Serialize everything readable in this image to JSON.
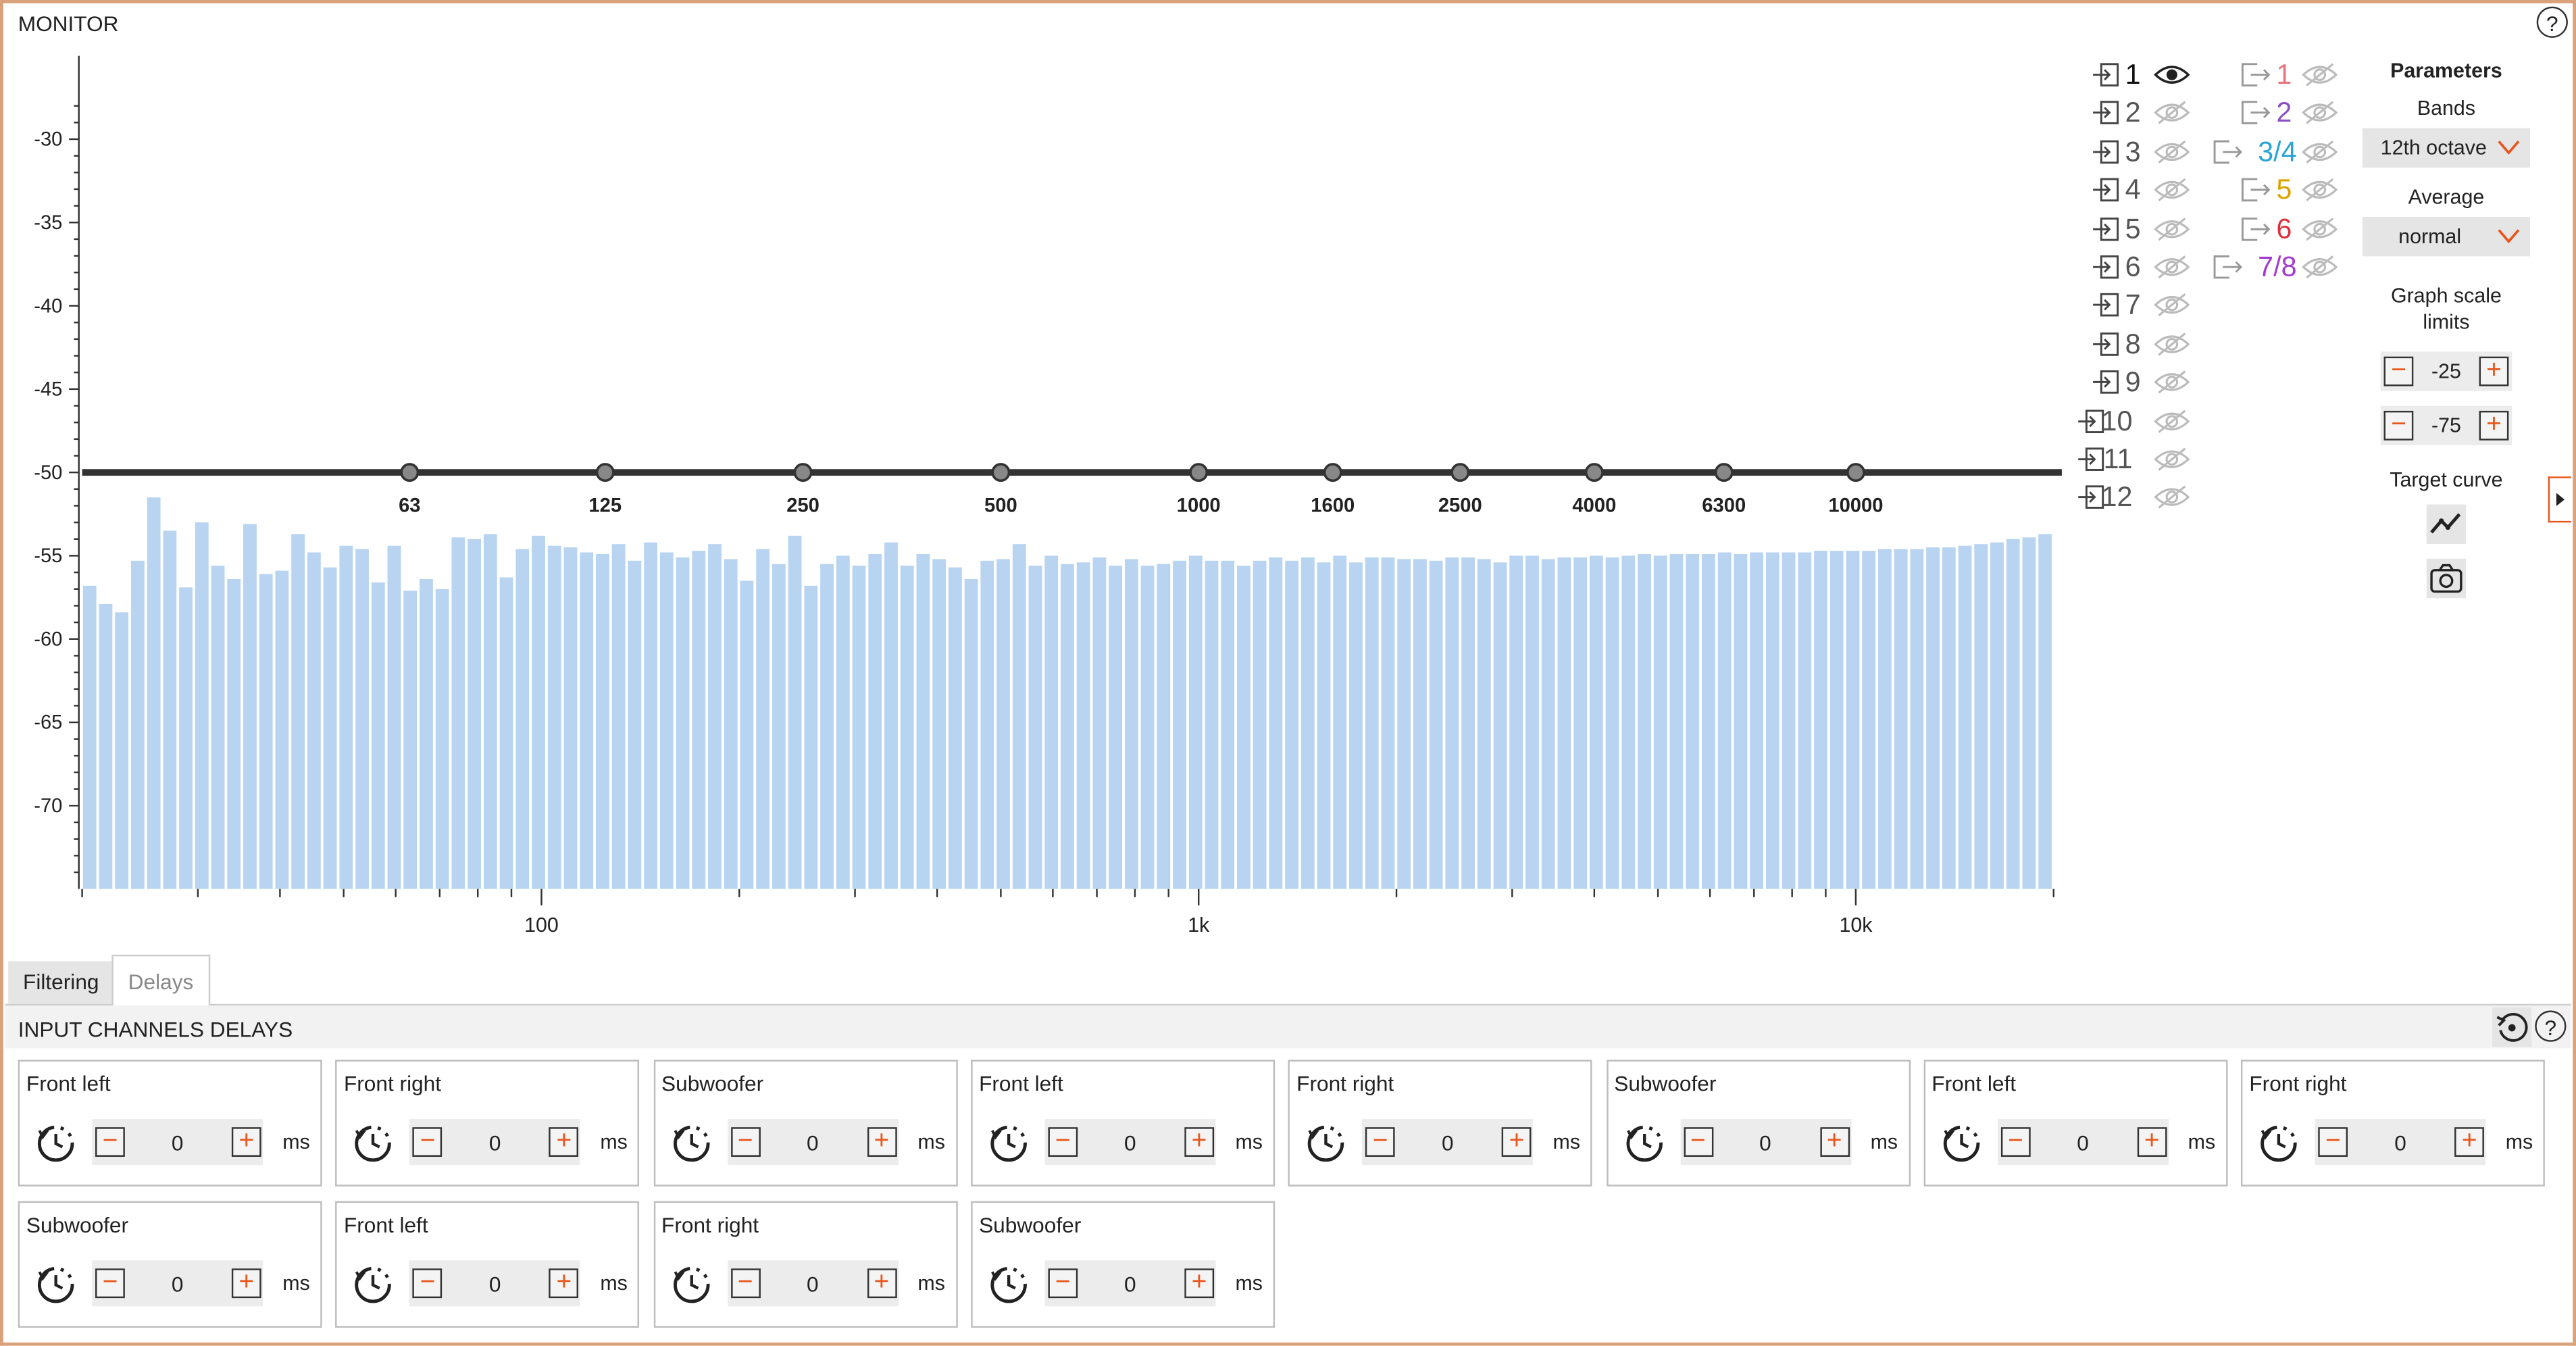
{
  "window": {
    "title": "MONITOR",
    "help_label": "?"
  },
  "graph": {
    "y_ticks": [
      "-30",
      "-35",
      "-40",
      "-45",
      "-50",
      "-55",
      "-60",
      "-65",
      "-70"
    ],
    "x_ticks": [
      "100",
      "1k",
      "10k"
    ],
    "target_curve_points": [
      "63",
      "125",
      "250",
      "500",
      "1000",
      "1600",
      "2500",
      "4000",
      "6300",
      "10000"
    ],
    "target_level_db": -50
  },
  "chart_data": {
    "type": "bar",
    "ylim": [
      -75,
      -25
    ],
    "x_scale": "log",
    "x_range_hz": [
      20,
      20000
    ],
    "bands": "12th octave",
    "values": [
      -56.8,
      -57.9,
      -58.4,
      -55.3,
      -51.5,
      -53.5,
      -56.9,
      -53.0,
      -55.6,
      -56.4,
      -53.1,
      -56.1,
      -55.9,
      -53.7,
      -54.8,
      -55.7,
      -54.4,
      -54.6,
      -56.6,
      -54.4,
      -57.1,
      -56.4,
      -57.0,
      -53.9,
      -54.0,
      -53.7,
      -56.3,
      -54.6,
      -53.8,
      -54.4,
      -54.5,
      -54.8,
      -54.9,
      -54.3,
      -55.3,
      -54.2,
      -54.8,
      -55.1,
      -54.7,
      -54.3,
      -55.2,
      -56.5,
      -54.6,
      -55.5,
      -53.8,
      -56.8,
      -55.5,
      -55.0,
      -55.6,
      -54.9,
      -54.2,
      -55.6,
      -54.9,
      -55.2,
      -55.7,
      -56.4,
      -55.3,
      -55.2,
      -54.3,
      -55.6,
      -55.0,
      -55.5,
      -55.4,
      -55.1,
      -55.6,
      -55.2,
      -55.6,
      -55.5,
      -55.3,
      -55.0,
      -55.3,
      -55.3,
      -55.6,
      -55.3,
      -55.1,
      -55.3,
      -55.1,
      -55.4,
      -55.0,
      -55.4,
      -55.1,
      -55.1,
      -55.2,
      -55.2,
      -55.3,
      -55.1,
      -55.1,
      -55.2,
      -55.4,
      -55.0,
      -55.0,
      -55.2,
      -55.1,
      -55.1,
      -55.0,
      -55.1,
      -55.0,
      -54.9,
      -55.0,
      -54.9,
      -54.9,
      -54.9,
      -54.8,
      -54.9,
      -54.8,
      -54.8,
      -54.8,
      -54.8,
      -54.7,
      -54.7,
      -54.7,
      -54.7,
      -54.6,
      -54.6,
      -54.6,
      -54.5,
      -54.5,
      -54.4,
      -54.3,
      -54.2,
      -54.0,
      -53.9,
      -53.7
    ]
  },
  "input_channels": [
    {
      "num": "1",
      "visible": true
    },
    {
      "num": "2",
      "visible": false
    },
    {
      "num": "3",
      "visible": false
    },
    {
      "num": "4",
      "visible": false
    },
    {
      "num": "5",
      "visible": false
    },
    {
      "num": "6",
      "visible": false
    },
    {
      "num": "7",
      "visible": false
    },
    {
      "num": "8",
      "visible": false
    },
    {
      "num": "9",
      "visible": false
    },
    {
      "num": "10",
      "visible": false
    },
    {
      "num": "11",
      "visible": false
    },
    {
      "num": "12",
      "visible": false
    }
  ],
  "output_channels": [
    {
      "num": "1",
      "color": "#e8747c"
    },
    {
      "num": "2",
      "color": "#8a4fc6"
    },
    {
      "num": "3/4",
      "color": "#2aa3d6"
    },
    {
      "num": "5",
      "color": "#d9a400"
    },
    {
      "num": "6",
      "color": "#e0303a"
    },
    {
      "num": "7/8",
      "color": "#a33bd0"
    }
  ],
  "parameters": {
    "title": "Parameters",
    "bands_label": "Bands",
    "bands_value": "12th octave",
    "average_label": "Average",
    "average_value": "normal",
    "scale_label": "Graph scale limits",
    "scale_max": "-25",
    "scale_min": "-75",
    "target_label": "Target curve"
  },
  "tabs": {
    "filtering": "Filtering",
    "delays": "Delays"
  },
  "delays": {
    "title": "INPUT CHANNELS DELAYS",
    "unit": "ms",
    "cards": [
      {
        "name": "Front left",
        "value": "0"
      },
      {
        "name": "Front right",
        "value": "0"
      },
      {
        "name": "Subwoofer",
        "value": "0"
      },
      {
        "name": "Front left",
        "value": "0"
      },
      {
        "name": "Front right",
        "value": "0"
      },
      {
        "name": "Subwoofer",
        "value": "0"
      },
      {
        "name": "Front left",
        "value": "0"
      },
      {
        "name": "Front right",
        "value": "0"
      },
      {
        "name": "Subwoofer",
        "value": "0"
      },
      {
        "name": "Front left",
        "value": "0"
      },
      {
        "name": "Front right",
        "value": "0"
      },
      {
        "name": "Subwoofer",
        "value": "0"
      }
    ]
  },
  "colors": {
    "accent": "#e8561b",
    "bar": "#b9d4f1",
    "target_line": "#333333"
  }
}
